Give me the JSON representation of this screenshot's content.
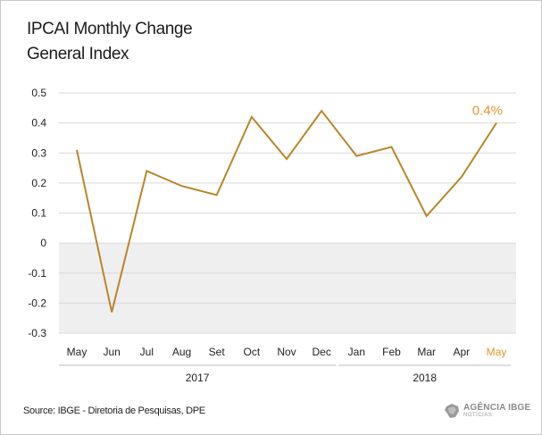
{
  "header": {
    "title": "IPCAI Monthly Change",
    "subtitle": "General Index"
  },
  "chart_data": {
    "type": "line",
    "categories": [
      "May",
      "Jun",
      "Jul",
      "Aug",
      "Set",
      "Oct",
      "Nov",
      "Dec",
      "Jan",
      "Feb",
      "Mar",
      "Apr",
      "May"
    ],
    "series": [
      {
        "values": [
          0.31,
          -0.23,
          0.24,
          0.19,
          0.16,
          0.42,
          0.28,
          0.44,
          0.29,
          0.32,
          0.09,
          0.22,
          0.4
        ]
      }
    ],
    "year_groups": [
      {
        "label": "2017",
        "from": 0,
        "to": 7
      },
      {
        "label": "2018",
        "from": 8,
        "to": 12
      }
    ],
    "yticks": [
      "0.5",
      "0.4",
      "0.3",
      "0.2",
      "0.1",
      "0",
      "-0.1",
      "-0.2",
      "-0.3"
    ],
    "ylim": [
      -0.3,
      0.5
    ],
    "grid": true,
    "last_value_label": "0.4%",
    "colors": {
      "line": "#b8862a",
      "highlight": "#e6952b",
      "negative_zone": "#efefef",
      "grid": "#d9d9d9"
    }
  },
  "footer": {
    "source": "Source: IBGE - Diretoria de Pesquisas, DPE",
    "logo_text": "AGÊNCIA IBGE",
    "logo_sub": "NOTÍCIAS"
  }
}
